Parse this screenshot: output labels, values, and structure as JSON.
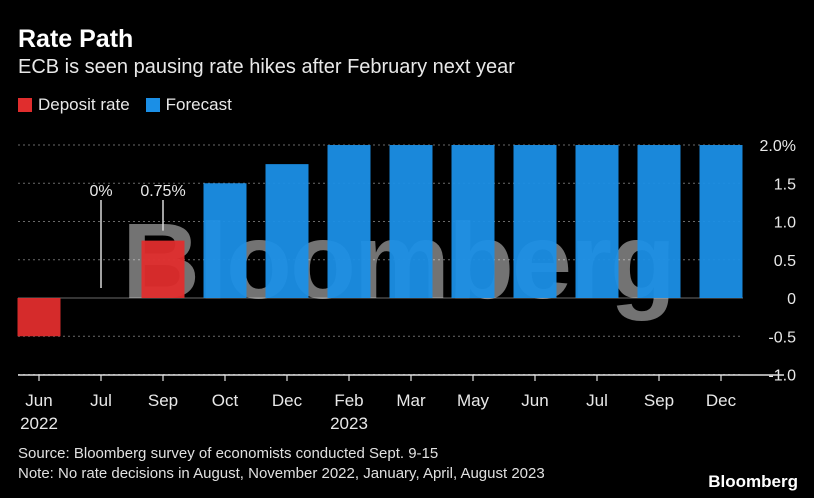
{
  "header": {
    "title": "Rate Path",
    "subtitle": "ECB is seen pausing rate hikes after February next year"
  },
  "legend": {
    "items": [
      {
        "label": "Deposit rate",
        "color": "#e02d2d"
      },
      {
        "label": "Forecast",
        "color": "#1b8fe6"
      }
    ]
  },
  "footer": {
    "source": "Source: Bloomberg survey of economists conducted Sept. 9-15",
    "note": "Note: No rate decisions in August, November 2022, January, April, August 2023",
    "brand": "Bloomberg"
  },
  "watermark": "Bloomberg",
  "chart_data": {
    "type": "bar",
    "categories": [
      "Jun",
      "Jul",
      "Sep",
      "Oct",
      "Dec",
      "Feb",
      "Mar",
      "May",
      "Jun",
      "Jul",
      "Sep",
      "Dec"
    ],
    "year_labels": {
      "Jun": "2022",
      "Feb": "2023"
    },
    "series": [
      {
        "name": "Deposit rate",
        "color": "#e02d2d",
        "values": [
          -0.5,
          null,
          0.75,
          null,
          null,
          null,
          null,
          null,
          null,
          null,
          null,
          null
        ]
      },
      {
        "name": "Forecast",
        "color": "#1b8fe6",
        "values": [
          null,
          null,
          null,
          1.5,
          1.75,
          2.0,
          2.0,
          2.0,
          2.0,
          2.0,
          2.0,
          2.0
        ]
      }
    ],
    "ylim": [
      -1.0,
      2.0
    ],
    "yticks": [
      {
        "value": 2.0,
        "label": "2.0%"
      },
      {
        "value": 1.5,
        "label": "1.5"
      },
      {
        "value": 1.0,
        "label": "1.0"
      },
      {
        "value": 0.5,
        "label": "0.5"
      },
      {
        "value": 0,
        "label": "0"
      },
      {
        "value": -0.5,
        "label": "-0.5"
      },
      {
        "value": -1.0,
        "label": "-1.0"
      }
    ],
    "annotations": [
      {
        "category_index": 1,
        "value": 0,
        "label": "0%"
      },
      {
        "category_index": 2,
        "value": 0.75,
        "label": "0.75%"
      }
    ],
    "grid": true,
    "legend_position": "top-left"
  }
}
